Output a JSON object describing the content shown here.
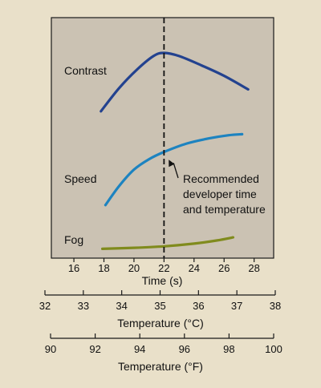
{
  "chart_data": {
    "type": "line",
    "title": "",
    "xlabel": "Time (s)",
    "xlim": [
      14.5,
      29.3
    ],
    "x_ticks": [
      16,
      18,
      20,
      22,
      24,
      26,
      28
    ],
    "grid": false,
    "legend": "none",
    "reference_line": {
      "x": 22,
      "style": "dashed"
    },
    "series": [
      {
        "name": "Contrast",
        "color": "#23428f",
        "points": [
          [
            17.8,
            0.67
          ],
          [
            19.0,
            0.78
          ],
          [
            20.2,
            0.87
          ],
          [
            21.3,
            0.935
          ],
          [
            22.0,
            0.95
          ],
          [
            23.0,
            0.935
          ],
          [
            24.5,
            0.89
          ],
          [
            26.0,
            0.84
          ],
          [
            27.6,
            0.775
          ]
        ]
      },
      {
        "name": "Speed",
        "color": "#1d83c0",
        "points": [
          [
            18.1,
            0.22
          ],
          [
            19.0,
            0.31
          ],
          [
            20.0,
            0.39
          ],
          [
            21.0,
            0.44
          ],
          [
            22.0,
            0.475
          ],
          [
            23.5,
            0.515
          ],
          [
            25.0,
            0.54
          ],
          [
            26.3,
            0.555
          ],
          [
            27.2,
            0.56
          ]
        ]
      },
      {
        "name": "Fog",
        "color": "#808b1d",
        "points": [
          [
            17.9,
            0.01
          ],
          [
            20.0,
            0.015
          ],
          [
            22.0,
            0.022
          ],
          [
            24.0,
            0.035
          ],
          [
            25.5,
            0.05
          ],
          [
            26.6,
            0.065
          ]
        ]
      }
    ],
    "annotation": {
      "lines": [
        "Recommended",
        "developer time",
        "and temperature"
      ],
      "arrow_to": [
        22.1,
        0.445
      ]
    },
    "secondary_axes": [
      {
        "label": "Temperature (°C)",
        "ticks": [
          32,
          33,
          34,
          35,
          36,
          37,
          38
        ],
        "range": [
          32,
          38
        ]
      },
      {
        "label": "Temperature (°F)",
        "ticks": [
          90,
          92,
          94,
          96,
          98,
          100
        ],
        "range": [
          90,
          100
        ]
      }
    ]
  },
  "colors": {
    "background": "#e9e0c9",
    "plot_area": "#cbc2b3",
    "axis": "#1a1a1a"
  }
}
